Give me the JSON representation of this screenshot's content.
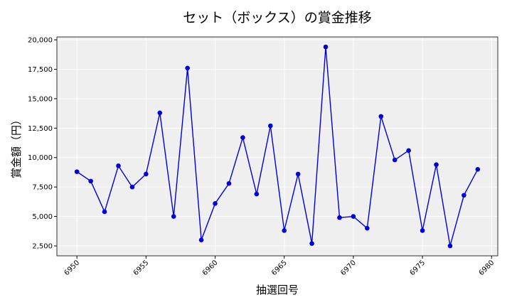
{
  "chart_data": {
    "type": "line",
    "title": "セット（ボックス）の賞金推移",
    "xlabel": "抽選回号",
    "ylabel": "賞金額（円）",
    "x": [
      6950,
      6951,
      6952,
      6953,
      6954,
      6955,
      6956,
      6957,
      6958,
      6959,
      6960,
      6961,
      6962,
      6963,
      6964,
      6965,
      6966,
      6967,
      6968,
      6969,
      6970,
      6971,
      6972,
      6973,
      6974,
      6975,
      6976,
      6977,
      6978,
      6979
    ],
    "series": [
      {
        "name": "セット（ボックス）",
        "color": "#0000dd",
        "values": [
          8800,
          8000,
          5400,
          9300,
          7500,
          8600,
          13800,
          5000,
          17600,
          3000,
          6100,
          7800,
          11700,
          6900,
          12700,
          3800,
          8600,
          2700,
          19400,
          4900,
          5000,
          4000,
          13500,
          9800,
          10600,
          3800,
          9400,
          2500,
          6800,
          9000
        ]
      }
    ],
    "xlim": [
      6948.55,
      6980.45
    ],
    "ylim": [
      1655,
      20245
    ],
    "xticks": [
      6950,
      6955,
      6960,
      6965,
      6970,
      6975,
      6980
    ],
    "yticks": [
      {
        "value": 2500,
        "label": "2,500"
      },
      {
        "value": 5000,
        "label": "5,000"
      },
      {
        "value": 7500,
        "label": "7,500"
      },
      {
        "value": 10000,
        "label": "10,000"
      },
      {
        "value": 12500,
        "label": "12,500"
      },
      {
        "value": 15000,
        "label": "15,000"
      },
      {
        "value": 17500,
        "label": "17,500"
      },
      {
        "value": 20000,
        "label": "20,000"
      }
    ],
    "grid": true
  }
}
